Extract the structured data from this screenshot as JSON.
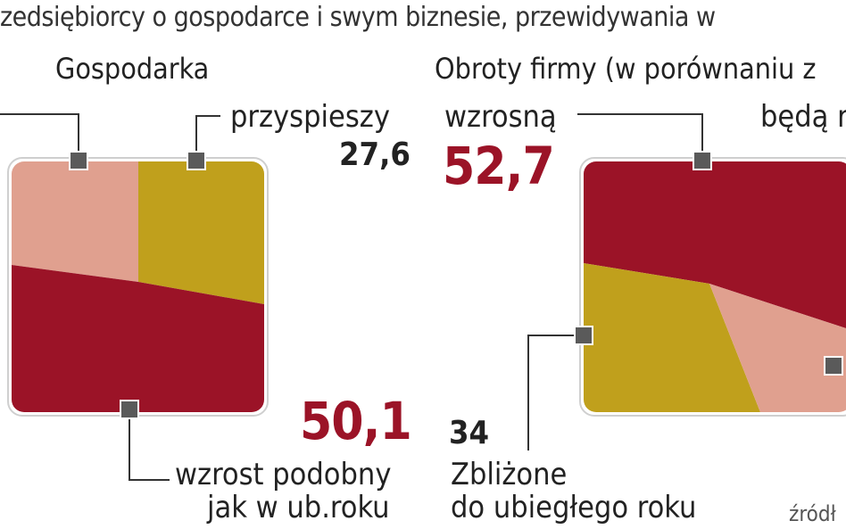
{
  "title": "zedsiębiorcy o gospodarce i swym biznesie, przewidywania  w",
  "source_fragment": "źródł",
  "colors": {
    "red": "#9b1327",
    "gold": "#c0a01c",
    "pink": "#e0a08f",
    "marker": "#5a5a5a",
    "line": "#333333"
  },
  "chart_data": [
    {
      "type": "pie",
      "title": "Gospodarka",
      "slices": [
        {
          "label": "przyspieszy",
          "value": 27.6,
          "color": "#c0a01c"
        },
        {
          "label": "wzrost podobny jak w ub.roku",
          "value": 50.1,
          "color": "#9b1327"
        },
        {
          "label": "",
          "value": null,
          "color": "#e0a08f"
        }
      ],
      "labels": {
        "przyspieszy": "przyspieszy",
        "przyspieszy_value": "27,6",
        "wzrost_line1": "wzrost podobny",
        "wzrost_line2": "jak w ub.roku",
        "wzrost_value": "50,1"
      }
    },
    {
      "type": "pie",
      "title": "Obroty firmy (w porównaniu z",
      "slices": [
        {
          "label": "wzrosną",
          "value": 52.7,
          "color": "#9b1327"
        },
        {
          "label": "Zbliżone do ubiegłego roku",
          "value": 34,
          "color": "#c0a01c"
        },
        {
          "label": "będą",
          "value": null,
          "color": "#e0a08f"
        }
      ],
      "labels": {
        "wzrosna": "wzrosną",
        "wzrosna_value": "52,7",
        "zblizone_line1": "Zbliżone",
        "zblizone_line2": "do ubiegłego roku",
        "zblizone_value": "34",
        "beda": "będą r"
      }
    }
  ]
}
